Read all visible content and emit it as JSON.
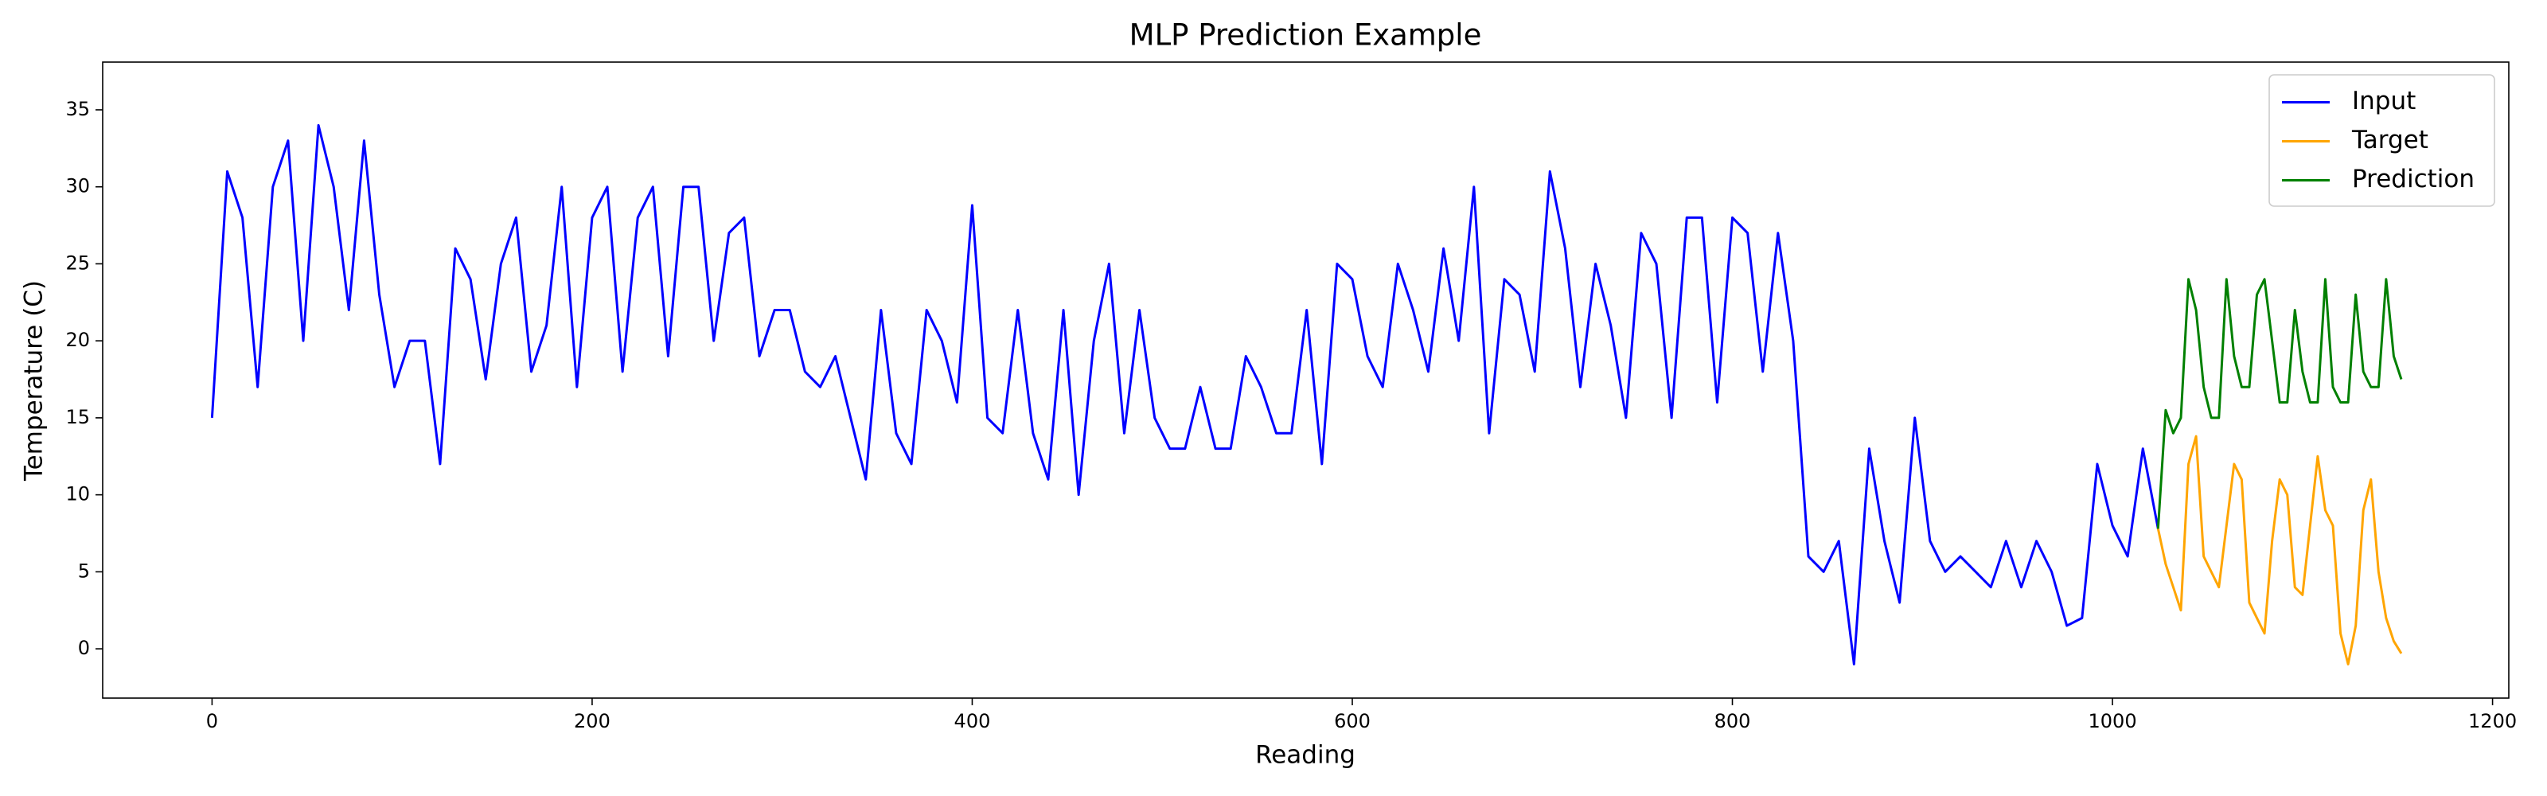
{
  "chart_data": {
    "type": "line",
    "title": "MLP Prediction Example",
    "x_label": "Reading",
    "y_label": "Temperature (C)",
    "xlim": [
      -57.55,
      1208.55
    ],
    "ylim": [
      -3.2,
      38.1
    ],
    "xticks": [
      0,
      200,
      400,
      600,
      800,
      1000,
      1200
    ],
    "yticks": [
      0,
      5,
      10,
      15,
      20,
      25,
      30,
      35
    ],
    "legend": "upper right",
    "grid": false,
    "series": [
      {
        "name": "Input",
        "color": "#0000ff",
        "x": [
          0,
          8,
          16,
          24,
          32,
          40,
          48,
          56,
          64,
          72,
          80,
          88,
          96,
          104,
          112,
          120,
          128,
          136,
          144,
          152,
          160,
          168,
          176,
          184,
          192,
          200,
          208,
          216,
          224,
          232,
          240,
          248,
          256,
          264,
          272,
          280,
          288,
          296,
          304,
          312,
          320,
          328,
          336,
          344,
          352,
          360,
          368,
          376,
          384,
          392,
          400,
          408,
          416,
          424,
          432,
          440,
          448,
          456,
          464,
          472,
          480,
          488,
          496,
          504,
          512,
          520,
          528,
          536,
          544,
          552,
          560,
          568,
          576,
          584,
          592,
          600,
          608,
          616,
          624,
          632,
          640,
          648,
          656,
          664,
          672,
          680,
          688,
          696,
          704,
          712,
          720,
          728,
          736,
          744,
          752,
          760,
          768,
          776,
          784,
          792,
          800,
          808,
          816,
          824,
          832,
          840,
          848,
          856,
          864,
          872,
          880,
          888,
          896,
          904,
          912,
          920,
          928,
          936,
          944,
          952,
          960,
          968,
          976,
          984,
          992,
          1000,
          1008,
          1016,
          1024
        ],
        "values": [
          15,
          31,
          28,
          17,
          30,
          33,
          20,
          34,
          30,
          22,
          33,
          23,
          17,
          20,
          20,
          12,
          26,
          24,
          17.5,
          25,
          28,
          18,
          21,
          30,
          17,
          28,
          30,
          18,
          28,
          30,
          19,
          30,
          30,
          20,
          27,
          28,
          19,
          22,
          22,
          18,
          17,
          19,
          15,
          11,
          22,
          14,
          12,
          22,
          20,
          16,
          28.8,
          15,
          14,
          22,
          14,
          11,
          22,
          10,
          20,
          25,
          14,
          22,
          15,
          13,
          13,
          17,
          13,
          13,
          19,
          17,
          14,
          14,
          22,
          12,
          25,
          24,
          19,
          17,
          25,
          22,
          18,
          26,
          20,
          30,
          14,
          24,
          23,
          18,
          31,
          26,
          17,
          25,
          21,
          15,
          27,
          25,
          15,
          28,
          28,
          16,
          28,
          27,
          18,
          27,
          20,
          6,
          5,
          7,
          -1,
          13,
          7,
          3,
          15,
          7,
          5,
          6,
          5,
          4,
          7,
          4,
          7,
          5,
          1.5,
          2,
          12,
          8,
          6,
          13,
          7.8
        ]
      },
      {
        "name": "Target",
        "color": "#ffa500",
        "x": [
          1024,
          1028,
          1032,
          1036,
          1040,
          1044,
          1048,
          1052,
          1056,
          1060,
          1064,
          1068,
          1072,
          1076,
          1080,
          1084,
          1088,
          1092,
          1096,
          1100,
          1104,
          1108,
          1112,
          1116,
          1120,
          1124,
          1128,
          1132,
          1136,
          1140,
          1144,
          1148,
          1152
        ],
        "values": [
          7.8,
          5.5,
          4,
          2.5,
          12,
          13.8,
          6,
          5,
          4,
          8,
          12,
          11,
          3,
          2,
          1,
          7,
          11,
          10,
          4,
          3.5,
          8,
          12.5,
          9,
          8,
          1,
          -1,
          1.5,
          9,
          11,
          5,
          2,
          0.5,
          -0.3
        ]
      },
      {
        "name": "Prediction",
        "color": "#008000",
        "x": [
          1024,
          1028,
          1032,
          1036,
          1040,
          1044,
          1048,
          1052,
          1056,
          1060,
          1064,
          1068,
          1072,
          1076,
          1080,
          1084,
          1088,
          1092,
          1096,
          1100,
          1104,
          1108,
          1112,
          1116,
          1120,
          1124,
          1128,
          1132,
          1136,
          1140,
          1144,
          1148,
          1152
        ],
        "values": [
          7.8,
          15.5,
          14,
          15,
          24,
          22,
          17,
          15,
          15,
          24,
          19,
          17,
          17,
          23,
          24,
          20,
          16,
          16,
          22,
          18,
          16,
          16,
          24,
          17,
          16,
          16,
          23,
          18,
          17,
          17,
          24,
          19,
          17.5
        ]
      }
    ]
  }
}
